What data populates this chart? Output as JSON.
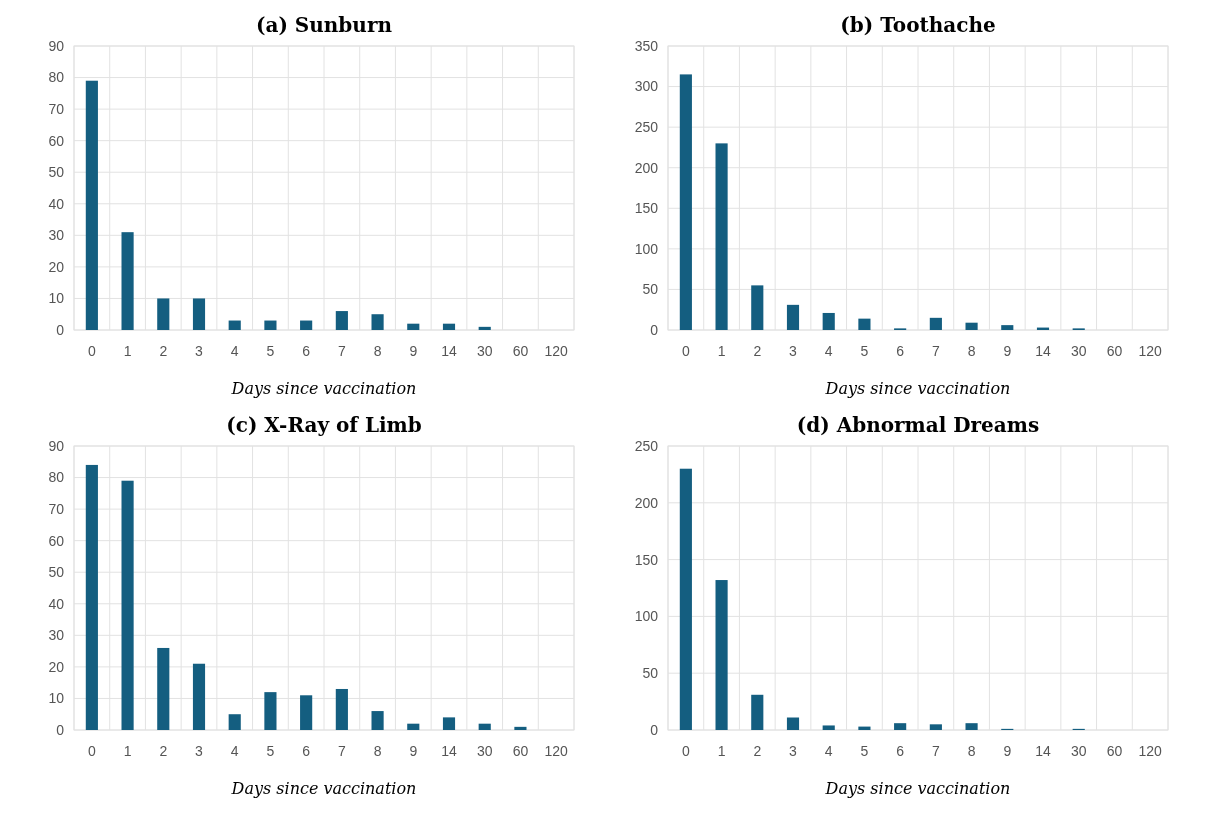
{
  "chart_data": [
    {
      "type": "bar",
      "title": "(a) Sunburn",
      "xlabel": "Days since vaccination",
      "categories": [
        "0",
        "1",
        "2",
        "3",
        "4",
        "5",
        "6",
        "7",
        "8",
        "9",
        "14",
        "30",
        "60",
        "120"
      ],
      "values": [
        79,
        31,
        10,
        10,
        3,
        3,
        3,
        6,
        5,
        2,
        2,
        1,
        0,
        0
      ],
      "color": "#145e80",
      "ylim": [
        0,
        90
      ],
      "yticks": [
        0,
        10,
        20,
        30,
        40,
        50,
        60,
        70,
        80,
        90
      ],
      "grid": true
    },
    {
      "type": "bar",
      "title": "(b) Toothache",
      "xlabel": "Days since vaccination",
      "categories": [
        "0",
        "1",
        "2",
        "3",
        "4",
        "5",
        "6",
        "7",
        "8",
        "9",
        "14",
        "30",
        "60",
        "120"
      ],
      "values": [
        315,
        230,
        55,
        31,
        21,
        14,
        2,
        15,
        9,
        6,
        3,
        2,
        0,
        0
      ],
      "color": "#145e80",
      "ylim": [
        0,
        350
      ],
      "yticks": [
        0,
        50,
        100,
        150,
        200,
        250,
        300,
        350
      ],
      "grid": true
    },
    {
      "type": "bar",
      "title": "(c) X-Ray of Limb",
      "xlabel": "Days since vaccination",
      "categories": [
        "0",
        "1",
        "2",
        "3",
        "4",
        "5",
        "6",
        "7",
        "8",
        "9",
        "14",
        "30",
        "60",
        "120"
      ],
      "values": [
        84,
        79,
        26,
        21,
        5,
        12,
        11,
        13,
        6,
        2,
        4,
        2,
        1,
        0
      ],
      "color": "#145e80",
      "ylim": [
        0,
        90
      ],
      "yticks": [
        0,
        10,
        20,
        30,
        40,
        50,
        60,
        70,
        80,
        90
      ],
      "grid": true
    },
    {
      "type": "bar",
      "title": "(d) Abnormal Dreams",
      "xlabel": "Days since vaccination",
      "categories": [
        "0",
        "1",
        "2",
        "3",
        "4",
        "5",
        "6",
        "7",
        "8",
        "9",
        "14",
        "30",
        "60",
        "120"
      ],
      "values": [
        230,
        132,
        31,
        11,
        4,
        3,
        6,
        5,
        6,
        1,
        0,
        1,
        0,
        0
      ],
      "color": "#145e80",
      "ylim": [
        0,
        250
      ],
      "yticks": [
        0,
        50,
        100,
        150,
        200,
        250
      ],
      "grid": true
    }
  ]
}
